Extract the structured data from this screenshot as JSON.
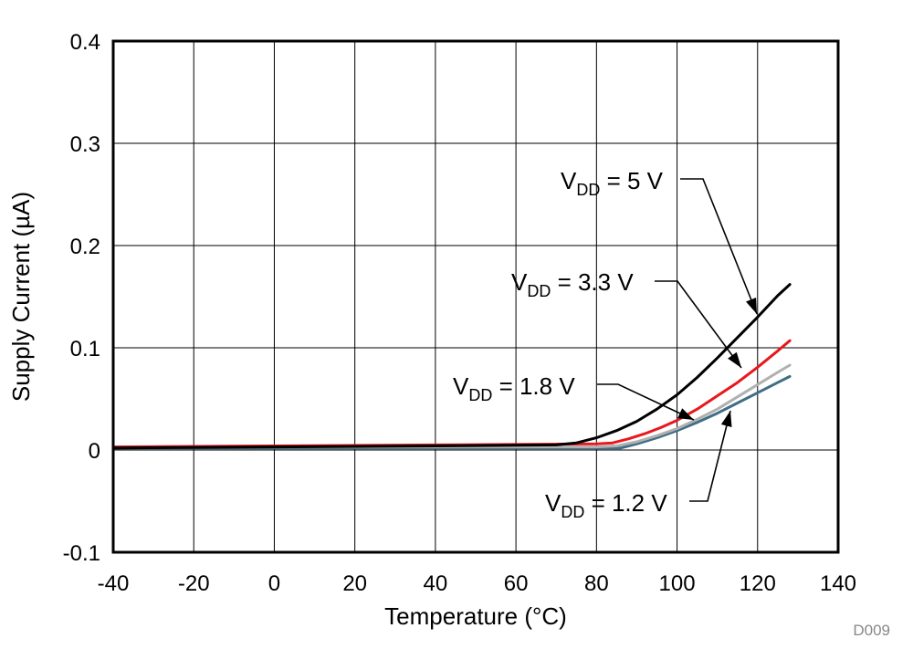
{
  "chart_data": {
    "type": "line",
    "title": "",
    "xlabel": "Temperature (°C)",
    "ylabel": "Supply Current (µA)",
    "xlim": [
      -40,
      140
    ],
    "ylim": [
      -0.1,
      0.4
    ],
    "xticks": [
      -40,
      -20,
      0,
      20,
      40,
      60,
      80,
      100,
      120,
      140
    ],
    "yticks": [
      -0.1,
      0,
      0.1,
      0.2,
      0.3,
      0.4
    ],
    "xtick_labels": [
      "-40",
      "-20",
      "0",
      "20",
      "40",
      "60",
      "80",
      "100",
      "120",
      "140"
    ],
    "ytick_labels": [
      "-0.1",
      "0",
      "0.1",
      "0.2",
      "0.3",
      "0.4"
    ],
    "grid": true,
    "figure_id": "D009",
    "series": [
      {
        "name": "VDD = 1.2 V",
        "label_main": "V",
        "label_sub": "DD",
        "label_rest": " = 1.2 V",
        "color": "#3f6e85",
        "x": [
          -40,
          0,
          40,
          80,
          86,
          90,
          95,
          100,
          105,
          110,
          115,
          120,
          125,
          128
        ],
        "y": [
          0.002,
          0.002,
          0.002,
          0.002,
          0.002,
          0.006,
          0.012,
          0.019,
          0.027,
          0.036,
          0.046,
          0.056,
          0.066,
          0.072
        ]
      },
      {
        "name": "VDD = 1.8 V",
        "label_main": "V",
        "label_sub": "DD",
        "label_rest": " = 1.8 V",
        "color": "#b0b0b0",
        "x": [
          -40,
          0,
          40,
          80,
          85,
          90,
          95,
          100,
          105,
          110,
          115,
          120,
          125,
          128
        ],
        "y": [
          0.003,
          0.003,
          0.003,
          0.003,
          0.004,
          0.008,
          0.014,
          0.021,
          0.03,
          0.04,
          0.052,
          0.064,
          0.076,
          0.083
        ]
      },
      {
        "name": "VDD = 3.3 V",
        "label_main": "V",
        "label_sub": "DD",
        "label_rest": " = 3.3 V",
        "color": "#e8181d",
        "x": [
          -40,
          0,
          40,
          80,
          84,
          88,
          92,
          96,
          100,
          105,
          110,
          115,
          120,
          125,
          128
        ],
        "y": [
          0.003,
          0.004,
          0.005,
          0.006,
          0.007,
          0.011,
          0.016,
          0.022,
          0.029,
          0.04,
          0.053,
          0.066,
          0.081,
          0.097,
          0.107
        ]
      },
      {
        "name": "VDD = 5 V",
        "label_main": "V",
        "label_sub": "DD",
        "label_rest": " = 5 V",
        "color": "#000000",
        "x": [
          -40,
          0,
          40,
          70,
          75,
          80,
          85,
          90,
          95,
          100,
          105,
          110,
          115,
          120,
          125,
          128
        ],
        "y": [
          0.002,
          0.003,
          0.004,
          0.005,
          0.007,
          0.012,
          0.019,
          0.028,
          0.04,
          0.054,
          0.071,
          0.09,
          0.11,
          0.13,
          0.151,
          0.162
        ]
      }
    ]
  }
}
